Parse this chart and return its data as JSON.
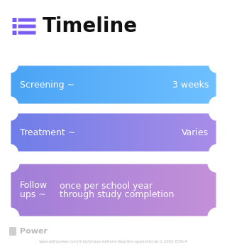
{
  "title": "Timeline",
  "title_fontsize": 20,
  "title_color": "#111111",
  "icon_color": "#7B5CF0",
  "background_color": "#ffffff",
  "rows": [
    {
      "left_label": "Screening ~",
      "right_label": "3 weeks",
      "grad_left": "#4BA3F5",
      "grad_right": "#6EC0FF",
      "multiline": false
    },
    {
      "left_label": "Treatment ~",
      "right_label": "Varies",
      "grad_left": "#6E7EE8",
      "grad_right": "#A98CE8",
      "multiline": false
    },
    {
      "left_label1": "Follow",
      "left_label2": "ups ~",
      "right_label1": "once per school year",
      "right_label2": "through study completion",
      "grad_left": "#A07ED8",
      "grad_right": "#C490D8",
      "multiline": true
    }
  ],
  "footer_logo_color": "#bbbbbb",
  "footer_text": "Power",
  "footer_fontsize": 8,
  "url_text": "www.withpower.com/trial/phase-defiant-disorder-oppositional-1-2022-839c4",
  "url_fontsize": 4
}
